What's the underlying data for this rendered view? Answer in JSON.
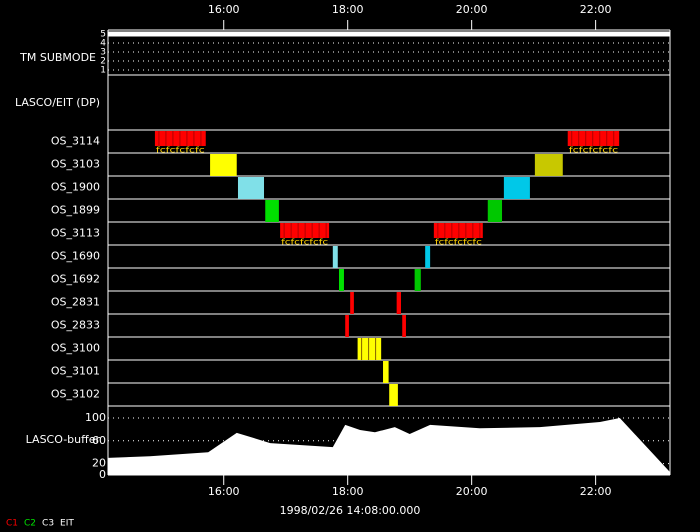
{
  "chart_data": {
    "type": "timeline",
    "xlim": [
      14.133,
      23.2
    ],
    "xticks": [
      {
        "value": 16,
        "label": "16:00"
      },
      {
        "value": 18,
        "label": "18:00"
      },
      {
        "value": 20,
        "label": "20:00"
      },
      {
        "value": 22,
        "label": "22:00"
      }
    ],
    "x_label": "1998/02/26 14:08:00.000",
    "submode": {
      "label": "TM SUBMODE",
      "ylim": [
        1,
        5
      ],
      "yticks": [
        1,
        2,
        3,
        4,
        5
      ],
      "x": [
        14.133,
        23.2
      ],
      "values": [
        5,
        5
      ],
      "color": "#ffffff"
    },
    "lasco_eit": {
      "label": "LASCO/EIT (DP)"
    },
    "rows": [
      {
        "name": "OS_3114",
        "blocks": [
          {
            "start": 14.89,
            "end": 15.71,
            "color": "#ff0000",
            "striped": true,
            "label": "fcfcfcfcfc"
          },
          {
            "start": 21.55,
            "end": 22.38,
            "color": "#ff0000",
            "striped": true,
            "label": "fcfcfcfcfc"
          }
        ]
      },
      {
        "name": "OS_3103",
        "blocks": [
          {
            "start": 15.78,
            "end": 16.21,
            "color": "#ffff00"
          },
          {
            "start": 21.02,
            "end": 21.47,
            "color": "#c8c800"
          }
        ]
      },
      {
        "name": "OS_1900",
        "blocks": [
          {
            "start": 16.23,
            "end": 16.65,
            "color": "#80e0e8"
          },
          {
            "start": 20.52,
            "end": 20.94,
            "color": "#00c8e8"
          }
        ]
      },
      {
        "name": "OS_1899",
        "blocks": [
          {
            "start": 16.67,
            "end": 16.89,
            "color": "#00e000"
          },
          {
            "start": 20.26,
            "end": 20.49,
            "color": "#00c800"
          }
        ]
      },
      {
        "name": "OS_3113",
        "blocks": [
          {
            "start": 16.91,
            "end": 17.7,
            "color": "#ff0000",
            "striped": true,
            "label": "fcfcfcfcfc"
          },
          {
            "start": 19.39,
            "end": 20.18,
            "color": "#ff0000",
            "striped": true,
            "label": "fcfcfcfcfc"
          }
        ]
      },
      {
        "name": "OS_1690",
        "blocks": [
          {
            "start": 17.76,
            "end": 17.84,
            "color": "#80e0e8"
          },
          {
            "start": 19.25,
            "end": 19.33,
            "color": "#00c8e8"
          }
        ]
      },
      {
        "name": "OS_1692",
        "blocks": [
          {
            "start": 17.86,
            "end": 17.94,
            "color": "#00e000"
          },
          {
            "start": 19.08,
            "end": 19.18,
            "color": "#00c800"
          }
        ]
      },
      {
        "name": "OS_2831",
        "blocks": [
          {
            "start": 18.04,
            "end": 18.1,
            "color": "#ff0000"
          },
          {
            "start": 18.79,
            "end": 18.86,
            "color": "#ff0000"
          }
        ]
      },
      {
        "name": "OS_2833",
        "blocks": [
          {
            "start": 17.96,
            "end": 18.02,
            "color": "#ff0000"
          },
          {
            "start": 18.88,
            "end": 18.94,
            "color": "#ff0000"
          }
        ]
      },
      {
        "name": "OS_3100",
        "blocks": [
          {
            "start": 18.16,
            "end": 18.54,
            "color": "#ffff00",
            "striped": true
          }
        ]
      },
      {
        "name": "OS_3101",
        "blocks": [
          {
            "start": 18.57,
            "end": 18.66,
            "color": "#ffff00"
          }
        ]
      },
      {
        "name": "OS_3102",
        "blocks": [
          {
            "start": 18.67,
            "end": 18.81,
            "color": "#ffff00"
          }
        ]
      }
    ],
    "buffer": {
      "label": "LASCO-buffer",
      "ylim": [
        0,
        100
      ],
      "yticks": [
        0,
        20,
        60,
        100
      ],
      "color": "#ffffff",
      "x": [
        14.133,
        14.81,
        15.75,
        16.21,
        16.75,
        17.76,
        17.96,
        18.2,
        18.44,
        18.76,
        19.0,
        19.33,
        20.13,
        21.1,
        22.07,
        22.39,
        23.2
      ],
      "values": [
        30,
        33,
        40,
        74,
        56,
        49,
        88,
        79,
        75,
        84,
        72,
        88,
        82,
        84,
        93,
        100,
        5
      ]
    },
    "legend": [
      {
        "name": "C1",
        "color": "#ff0000"
      },
      {
        "name": "C2",
        "color": "#00e000"
      },
      {
        "name": "C3",
        "color": "#ffffff"
      },
      {
        "name": "EIT",
        "color": "#ffffff"
      }
    ]
  }
}
